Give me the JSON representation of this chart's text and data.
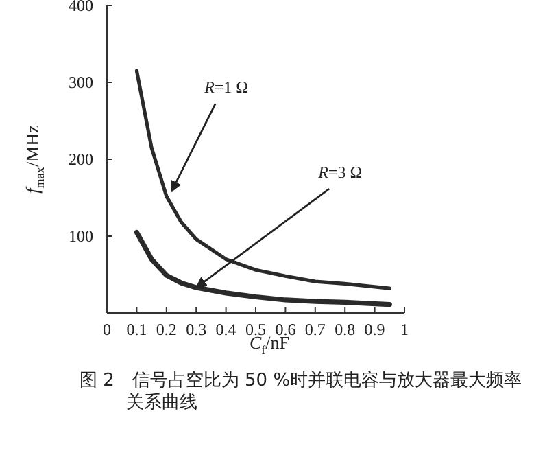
{
  "chart_data": {
    "type": "line",
    "title": "图 2　信号占空比为 50 %时并联电容与放大器最大频率关系曲线",
    "xlabel": "C$_{f}$/nF",
    "ylabel": "f$_{max}$/MHz",
    "x": [
      0.1,
      0.15,
      0.2,
      0.25,
      0.3,
      0.4,
      0.5,
      0.6,
      0.7,
      0.8,
      0.95
    ],
    "xlim": [
      0,
      1
    ],
    "xticks": [
      0,
      0.1,
      0.2,
      0.3,
      0.4,
      0.5,
      0.6,
      0.7,
      0.8,
      0.9,
      1
    ],
    "ylim": [
      0,
      400
    ],
    "yticks": [
      100,
      200,
      300,
      400
    ],
    "grid": false,
    "marker": "none",
    "line_style": "solid",
    "series": [
      {
        "color": "#2a2a2a",
        "values": [
          315,
          215,
          152,
          118,
          96,
          70,
          56,
          48,
          41,
          38,
          32
        ]
      },
      {
        "color": "#2a2a2a",
        "values": [
          105,
          70,
          49,
          39,
          33,
          26,
          21,
          17,
          15,
          14,
          11
        ]
      }
    ],
    "annotations": [
      {
        "text": "R=1 Ω",
        "x": 0.217,
        "y": 158
      },
      {
        "text": "R=3 Ω",
        "x": 0.3,
        "y": 33
      }
    ]
  }
}
